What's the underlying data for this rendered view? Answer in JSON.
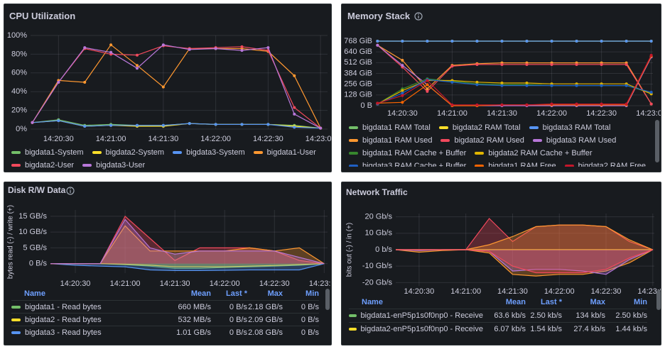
{
  "chart_data": [
    {
      "type": "line",
      "title": "CPU Utilization",
      "points": true,
      "grid": true,
      "x": [
        "14:20:15",
        "14:20:30",
        "14:20:45",
        "14:21:00",
        "14:21:15",
        "14:21:30",
        "14:21:45",
        "14:22:00",
        "14:22:15",
        "14:22:30",
        "14:22:45",
        "14:23:00"
      ],
      "xlim": [
        "14:20:14",
        "14:23:04"
      ],
      "xticks": [
        "14:20:30",
        "14:21:00",
        "14:21:30",
        "14:22:00",
        "14:22:30",
        "14:23:00"
      ],
      "ylim": [
        0,
        100
      ],
      "yticks": [
        {
          "value": 0,
          "label": "0%"
        },
        {
          "value": 20,
          "label": "20%"
        },
        {
          "value": 40,
          "label": "40%"
        },
        {
          "value": 60,
          "label": "60%"
        },
        {
          "value": 80,
          "label": "80%"
        },
        {
          "value": 100,
          "label": "100%"
        }
      ],
      "series": [
        {
          "name": "bigdata1-System",
          "color": "#73bf69",
          "values": [
            7,
            10,
            4,
            5,
            4,
            4,
            6,
            5,
            5,
            5,
            4,
            1
          ]
        },
        {
          "name": "bigdata2-System",
          "color": "#fade2a",
          "values": [
            7,
            9,
            3,
            4,
            3,
            3,
            6,
            5,
            5,
            5,
            3,
            1
          ]
        },
        {
          "name": "bigdata3-System",
          "color": "#5794f2",
          "values": [
            7,
            9,
            3,
            4,
            4,
            4,
            6,
            5,
            5,
            5,
            2,
            1
          ]
        },
        {
          "name": "bigdata1-User",
          "color": "#ff9830",
          "values": [
            7,
            52,
            50,
            90,
            68,
            45,
            86,
            86,
            86,
            83,
            57,
            1
          ]
        },
        {
          "name": "bigdata2-User",
          "color": "#f2495c",
          "values": [
            7,
            50,
            86,
            80,
            79,
            89,
            86,
            87,
            88,
            84,
            23,
            1
          ]
        },
        {
          "name": "bigdata3-User",
          "color": "#b877d9",
          "values": [
            7,
            50,
            87,
            82,
            65,
            90,
            85,
            86,
            84,
            87,
            16,
            1
          ]
        }
      ]
    },
    {
      "type": "line",
      "title": "Memory Stack",
      "points": true,
      "grid": true,
      "x": [
        "14:20:15",
        "14:20:30",
        "14:20:45",
        "14:21:00",
        "14:21:15",
        "14:21:30",
        "14:21:45",
        "14:22:00",
        "14:22:15",
        "14:22:30",
        "14:22:45",
        "14:23:00"
      ],
      "xlim": [
        "14:20:14",
        "14:23:01"
      ],
      "xticks": [
        "14:20:30",
        "14:21:00",
        "14:21:30",
        "14:22:00",
        "14:22:30",
        "14:23:00"
      ],
      "ylim": [
        0,
        768
      ],
      "yticks": [
        {
          "value": 0,
          "label": "0 B"
        },
        {
          "value": 128,
          "label": "128 GiB"
        },
        {
          "value": 256,
          "label": "256 GiB"
        },
        {
          "value": 384,
          "label": "384 GiB"
        },
        {
          "value": 512,
          "label": "512 GiB"
        },
        {
          "value": 640,
          "label": "640 GiB"
        },
        {
          "value": 768,
          "label": "768 GiB"
        }
      ],
      "series": [
        {
          "name": "bigdata1 RAM Total",
          "color": "#73bf69",
          "values": [
            768,
            768,
            768,
            768,
            768,
            768,
            768,
            768,
            768,
            768,
            768,
            768
          ]
        },
        {
          "name": "bigdata2 RAM Total",
          "color": "#fade2a",
          "values": [
            768,
            768,
            768,
            768,
            768,
            768,
            768,
            768,
            768,
            768,
            768,
            768
          ]
        },
        {
          "name": "bigdata3 RAM Total",
          "color": "#5794f2",
          "values": [
            768,
            768,
            768,
            768,
            768,
            768,
            768,
            768,
            768,
            768,
            768,
            768
          ]
        },
        {
          "name": "bigdata1 RAM Used",
          "color": "#ff9830",
          "values": [
            720,
            540,
            200,
            480,
            500,
            510,
            510,
            510,
            510,
            510,
            510,
            20
          ]
        },
        {
          "name": "bigdata2 RAM Used",
          "color": "#f2495c",
          "values": [
            720,
            460,
            170,
            470,
            490,
            490,
            490,
            490,
            490,
            490,
            490,
            20
          ]
        },
        {
          "name": "bigdata3 RAM Used",
          "color": "#b877d9",
          "values": [
            720,
            480,
            250,
            0,
            0,
            0,
            0,
            0,
            0,
            0,
            0,
            580
          ]
        },
        {
          "name": "bigdata1 RAM Cache + Buffer",
          "color": "#37872d",
          "values": [
            20,
            200,
            320,
            290,
            260,
            250,
            250,
            240,
            240,
            240,
            240,
            150
          ]
        },
        {
          "name": "bigdata2 RAM Cache + Buffer",
          "color": "#e0b400",
          "values": [
            20,
            180,
            300,
            300,
            280,
            270,
            270,
            260,
            260,
            260,
            260,
            140
          ]
        },
        {
          "name": "bigdata3 RAM Cache + Buffer",
          "color": "#1f60c4",
          "values": [
            20,
            150,
            310,
            280,
            250,
            240,
            240,
            240,
            240,
            240,
            240,
            160
          ]
        },
        {
          "name": "bigdata1 RAM Free",
          "color": "#fa6400",
          "values": [
            30,
            40,
            250,
            0,
            0,
            10,
            10,
            10,
            10,
            10,
            10,
            590
          ]
        },
        {
          "name": "bigdata2 RAM Free",
          "color": "#c4162a",
          "values": [
            30,
            120,
            300,
            10,
            10,
            10,
            10,
            20,
            20,
            20,
            20,
            600
          ]
        }
      ]
    },
    {
      "type": "area",
      "title": "Disk R/W Data",
      "grid": true,
      "y_label": "bytes read (-) / write (+)",
      "x": [
        "14:20:15",
        "14:20:30",
        "14:20:45",
        "14:21:00",
        "14:21:15",
        "14:21:30",
        "14:21:45",
        "14:22:00",
        "14:22:15",
        "14:22:30",
        "14:22:45",
        "14:23:00"
      ],
      "xlim": [
        "14:20:15",
        "14:23:02"
      ],
      "xticks": [
        "14:20:30",
        "14:21:00",
        "14:21:30",
        "14:22:00",
        "14:22:30",
        "14:23:00"
      ],
      "ylim": [
        -3,
        17
      ],
      "yticks": [
        {
          "value": 0,
          "label": "0 B/s"
        },
        {
          "value": 5,
          "label": "5 GB/s"
        },
        {
          "value": 10,
          "label": "10 GB/s"
        },
        {
          "value": 15,
          "label": "15 GB/s"
        }
      ],
      "legend_columns": [
        "Name",
        "Mean",
        "Last *",
        "Max",
        "Min"
      ],
      "legend_stats": [
        [
          "660 MB/s",
          "0 B/s",
          "2.18 GB/s",
          "0 B/s"
        ],
        [
          "532 MB/s",
          "0 B/s",
          "2.09 GB/s",
          "0 B/s"
        ],
        [
          "1.01 GB/s",
          "0 B/s",
          "2.08 GB/s",
          "0 B/s"
        ]
      ],
      "series": [
        {
          "name": "bigdata1 - Read bytes",
          "color": "#73bf69",
          "values": [
            0,
            0,
            0,
            -0.3,
            -0.8,
            -1.5,
            -1.5,
            -1.2,
            -1,
            -0.8,
            -0.5,
            0
          ]
        },
        {
          "name": "bigdata2 - Read bytes",
          "color": "#fade2a",
          "values": [
            0,
            0,
            0,
            -0.2,
            -0.5,
            -1,
            -1,
            -1,
            -0.8,
            -0.6,
            -0.3,
            0
          ]
        },
        {
          "name": "bigdata3 - Read bytes",
          "color": "#5794f2",
          "values": [
            0,
            -0.5,
            -0.8,
            -1,
            -2,
            -2.2,
            -2.2,
            -2.1,
            -2,
            -2,
            -2,
            0
          ]
        },
        {
          "color": "#f2495c",
          "values": [
            0,
            0,
            0,
            15,
            8,
            1,
            5,
            5,
            5,
            4,
            1,
            0
          ]
        },
        {
          "color": "#ff9830",
          "values": [
            0,
            0,
            0,
            12,
            4,
            4,
            4,
            4,
            5,
            4,
            5,
            0
          ]
        },
        {
          "color": "#b877d9",
          "values": [
            0,
            0,
            0,
            14,
            5,
            3,
            4,
            4,
            4,
            4,
            2,
            0
          ]
        }
      ]
    },
    {
      "type": "area",
      "title": "Network Traffic",
      "grid": true,
      "y_label": "bits out (-) / in (+)",
      "x": [
        "14:20:15",
        "14:20:30",
        "14:20:45",
        "14:21:00",
        "14:21:15",
        "14:21:30",
        "14:21:45",
        "14:22:00",
        "14:22:15",
        "14:22:30",
        "14:22:45",
        "14:23:00"
      ],
      "xlim": [
        "14:20:15",
        "14:23:01"
      ],
      "xticks": [
        "14:20:30",
        "14:21:00",
        "14:21:30",
        "14:22:00",
        "14:22:30",
        "14:23:00"
      ],
      "ylim": [
        -22,
        22
      ],
      "yticks": [
        {
          "value": 20,
          "label": "20 Gb/s"
        },
        {
          "value": 10,
          "label": "10 Gb/s"
        },
        {
          "value": 0,
          "label": "0 b/s"
        },
        {
          "value": -10,
          "label": "-10 Gb/s"
        },
        {
          "value": -20,
          "label": "-20 Gb/s"
        }
      ],
      "legend_columns": [
        "Name",
        "Mean",
        "Last *",
        "Max",
        "Min"
      ],
      "legend_stats": [
        [
          "63.6 kb/s",
          "2.50 kb/s",
          "134 kb/s",
          "2.50 kb/s"
        ],
        [
          "6.07 kb/s",
          "1.54 kb/s",
          "27.4 kb/s",
          "1.44 kb/s"
        ]
      ],
      "series": [
        {
          "name": "bigdata1-enP5p1s0f0np0 - Receive",
          "color": "#73bf69",
          "values": [
            0,
            0,
            0,
            0,
            0,
            0,
            0,
            0,
            0,
            0,
            0,
            0
          ]
        },
        {
          "name": "bigdata2-enP5p1s0f0np0 - Receive",
          "color": "#fade2a",
          "values": [
            0,
            0,
            0,
            0,
            0,
            0,
            0,
            0,
            0,
            0,
            0,
            0
          ]
        },
        {
          "color": "#f2495c",
          "values": [
            0,
            0,
            0,
            0,
            19,
            5,
            14,
            15,
            15,
            14,
            5,
            0
          ]
        },
        {
          "color": "#ff9830",
          "values": [
            0,
            0,
            0,
            0,
            3,
            8,
            14,
            15,
            15,
            14,
            6,
            0
          ]
        },
        {
          "color": "#ff9830",
          "values": [
            0,
            -1.5,
            -0.5,
            0,
            -2,
            -15,
            -16,
            -15,
            -15,
            -13,
            -8,
            0
          ]
        },
        {
          "color": "#b877d9",
          "values": [
            0,
            -0.5,
            0,
            0,
            -1,
            -13,
            -12,
            -12,
            -13,
            -15,
            -6,
            0
          ]
        },
        {
          "color": "#f2495c",
          "values": [
            0,
            0,
            0,
            0,
            -1,
            -10,
            -14,
            -14,
            -14,
            -12,
            -5,
            0
          ]
        }
      ]
    }
  ]
}
